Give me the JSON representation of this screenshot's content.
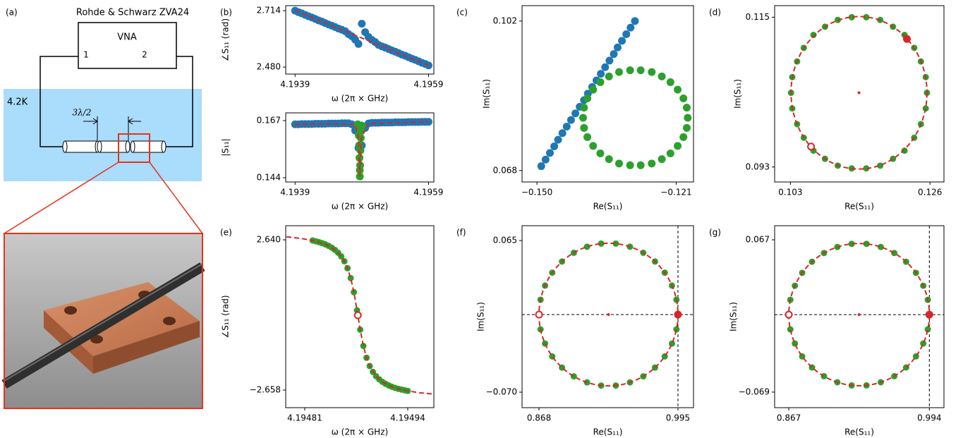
{
  "diagram": {
    "label": "(a)",
    "title": "Rohde & Schwarz ZVA24",
    "instrument": "VNA",
    "ports": [
      "1",
      "2"
    ],
    "temperature": "4.2K",
    "spacing": "3λ/2"
  },
  "chart_data": [
    {
      "type": "scatter",
      "label": "(b)",
      "xlabel": "ω (2π × GHz)",
      "ylabel": "∠S₁₁ (rad)",
      "xlim": [
        4.19376,
        4.19598
      ],
      "ylim": [
        2.451,
        2.735
      ],
      "xticks": [
        4.1939,
        4.1959
      ],
      "yticks": [
        2.714,
        {
          "value": 2.48,
          "label": "2.480"
        }
      ],
      "series": [
        {
          "color": "#1f77b4",
          "style": "points",
          "x": [
            4.1939,
            4.19395,
            4.194,
            4.19405,
            4.1941,
            4.19415,
            4.1942,
            4.19425,
            4.1943,
            4.19435,
            4.1944,
            4.19445,
            4.1945,
            4.19455,
            4.1946,
            4.19465,
            4.1947,
            4.19475,
            4.1948,
            4.19485,
            4.1949,
            4.19495,
            4.195,
            4.19505,
            4.1951,
            4.19515,
            4.1952,
            4.19525,
            4.1953,
            4.19535,
            4.1954,
            4.19545,
            4.1955,
            4.19555,
            4.1956,
            4.19565,
            4.1957,
            4.19575,
            4.1958,
            4.19585,
            4.1959
          ],
          "values": [
            2.714,
            2.708,
            2.703,
            2.697,
            2.691,
            2.686,
            2.68,
            2.674,
            2.669,
            2.663,
            2.657,
            2.652,
            2.646,
            2.64,
            2.635,
            2.629,
            2.617,
            2.608,
            2.594,
            2.576,
            2.66,
            2.625,
            2.605,
            2.593,
            2.584,
            2.572,
            2.566,
            2.561,
            2.555,
            2.549,
            2.544,
            2.538,
            2.532,
            2.527,
            2.521,
            2.515,
            2.51,
            2.504,
            2.498,
            2.493,
            2.487
          ]
        },
        {
          "color": "#d62728",
          "style": "dashed",
          "x": [
            4.1939,
            4.1959
          ],
          "values": [
            2.714,
            2.487
          ]
        }
      ]
    },
    {
      "type": "scatter",
      "xlabel": "ω (2π × GHz)",
      "ylabel": "|S₁₁|",
      "xlim": [
        4.19376,
        4.19598
      ],
      "ylim": [
        0.1423,
        0.1701
      ],
      "xticks": [
        4.1939,
        4.1959
      ],
      "yticks": [
        0.167,
        0.144
      ],
      "series": [
        {
          "color": "#1f77b4",
          "style": "points",
          "x": [
            4.1939,
            4.19395,
            4.194,
            4.19405,
            4.1941,
            4.19415,
            4.1942,
            4.19425,
            4.1943,
            4.19435,
            4.1944,
            4.19445,
            4.1945,
            4.19455,
            4.1946,
            4.19465,
            4.1947,
            4.19475,
            4.1948,
            4.19485,
            4.1949,
            4.19495,
            4.195,
            4.19505,
            4.1951,
            4.19515,
            4.1952,
            4.19525,
            4.1953,
            4.19535,
            4.1954,
            4.19545,
            4.1955,
            4.19555,
            4.1956,
            4.19565,
            4.1957,
            4.19575,
            4.1958,
            4.19585,
            4.1959
          ],
          "values": [
            0.1655,
            0.1655,
            0.1656,
            0.1656,
            0.1656,
            0.1656,
            0.1657,
            0.1657,
            0.1657,
            0.1657,
            0.1658,
            0.1658,
            0.1658,
            0.1658,
            0.1659,
            0.1659,
            0.1659,
            0.1655,
            0.163,
            0.156,
            0.157,
            0.164,
            0.1658,
            0.1661,
            0.1661,
            0.1661,
            0.1662,
            0.1662,
            0.1662,
            0.1662,
            0.1663,
            0.1663,
            0.1663,
            0.1663,
            0.1664,
            0.1664,
            0.1664,
            0.1664,
            0.1665,
            0.1665,
            0.1665
          ]
        },
        {
          "color": "#2ca02c",
          "style": "points",
          "x": [
            4.19484,
            4.19485,
            4.194855,
            4.19486,
            4.194865,
            4.19487,
            4.19487,
            4.194875,
            4.19488,
            4.194885,
            4.19489,
            4.1949
          ],
          "values": [
            0.1655,
            0.164,
            0.161,
            0.157,
            0.152,
            0.147,
            0.1445,
            0.149,
            0.155,
            0.16,
            0.163,
            0.165
          ]
        },
        {
          "color": "#d62728",
          "style": "dashed",
          "x": [
            4.1939,
            4.1945,
            4.1948,
            4.19485,
            4.19487,
            4.19489,
            4.195,
            4.1953,
            4.1959
          ],
          "values": [
            0.1655,
            0.1657,
            0.1654,
            0.16,
            0.1445,
            0.16,
            0.1658,
            0.1661,
            0.1665
          ]
        }
      ]
    },
    {
      "type": "scatter",
      "label": "(c)",
      "xlabel": "Re(S₁₁)",
      "ylabel": "Im(S₁₁)",
      "xlim": [
        -0.1531,
        -0.1174
      ],
      "ylim": [
        0.0654,
        0.1055
      ],
      "xticks": [
        {
          "value": -0.15,
          "label": "−0.150"
        },
        {
          "value": -0.121,
          "label": "−0.121"
        }
      ],
      "yticks": [
        0.102,
        0.068
      ],
      "series": [
        {
          "color": "#1f77b4",
          "style": "points",
          "x": [
            -0.1491,
            -0.1482,
            -0.1473,
            -0.1464,
            -0.1456,
            -0.1447,
            -0.1438,
            -0.1429,
            -0.142,
            -0.1411,
            -0.1402,
            -0.1394,
            -0.1385,
            -0.1376,
            -0.1367,
            -0.1358,
            -0.1349,
            -0.134,
            -0.1332,
            -0.1323,
            -0.1314,
            -0.1305,
            -0.1296
          ],
          "values": [
            0.069,
            0.0705,
            0.072,
            0.0735,
            0.075,
            0.0765,
            0.078,
            0.0795,
            0.081,
            0.0825,
            0.084,
            0.0855,
            0.087,
            0.0885,
            0.09,
            0.0915,
            0.093,
            0.0945,
            0.096,
            0.0975,
            0.099,
            0.1005,
            0.102
          ]
        },
        {
          "color": "#2ca02c",
          "style": "points",
          "x": [
            -0.1186,
            -0.1188,
            -0.1195,
            -0.1207,
            -0.1222,
            -0.124,
            -0.1261,
            -0.1284,
            -0.1306,
            -0.1329,
            -0.135,
            -0.1368,
            -0.1383,
            -0.1395,
            -0.1402,
            -0.1404,
            -0.1402,
            -0.1395,
            -0.1383,
            -0.1368,
            -0.135,
            -0.1329,
            -0.1306,
            -0.1284,
            -0.1261,
            -0.124,
            -0.1222,
            -0.1207,
            -0.1195,
            -0.1188
          ],
          "values": [
            0.08,
            0.0823,
            0.0844,
            0.0864,
            0.0881,
            0.0894,
            0.0904,
            0.0908,
            0.0908,
            0.0904,
            0.0894,
            0.0881,
            0.0864,
            0.0844,
            0.0823,
            0.08,
            0.0777,
            0.0756,
            0.0736,
            0.0719,
            0.0706,
            0.0696,
            0.0692,
            0.0692,
            0.0696,
            0.0706,
            0.0719,
            0.0736,
            0.0756,
            0.0777
          ]
        }
      ]
    },
    {
      "type": "scatter",
      "label": "(d)",
      "xlabel": "Re(S₁₁)",
      "ylabel": "Im(S₁₁)",
      "xlim": [
        0.1004,
        0.1283
      ],
      "ylim": [
        0.0908,
        0.1167
      ],
      "xticks": [
        0.103,
        0.126
      ],
      "yticks": [
        0.115,
        0.093
      ],
      "circle": {
        "center": [
          0.1143,
          0.1039
        ],
        "radius": 0.0112
      },
      "series": [
        {
          "color": "#2ca02c",
          "style": "points",
          "x": [
            0.1255,
            0.1253,
            0.1245,
            0.1234,
            0.1218,
            0.1199,
            0.1178,
            0.1155,
            0.1131,
            0.1108,
            0.1087,
            0.1068,
            0.1052,
            0.1041,
            0.1033,
            0.1031,
            0.1033,
            0.1041,
            0.1052,
            0.1068,
            0.1087,
            0.1108,
            0.1131,
            0.1155,
            0.1178,
            0.1199,
            0.1218,
            0.1234,
            0.1245,
            0.1253
          ],
          "values": [
            0.1039,
            0.1062,
            0.1085,
            0.1105,
            0.1124,
            0.1136,
            0.1146,
            0.115,
            0.115,
            0.1146,
            0.1136,
            0.1124,
            0.1105,
            0.1085,
            0.1062,
            0.1039,
            0.1016,
            0.0993,
            0.0973,
            0.0954,
            0.0942,
            0.0932,
            0.0928,
            0.0928,
            0.0932,
            0.0942,
            0.0954,
            0.0973,
            0.0993,
            0.1016
          ]
        },
        {
          "color": "#d62728",
          "style": "filled",
          "x": [
            0.1222
          ],
          "values": [
            0.1118
          ]
        },
        {
          "color": "#d62728",
          "style": "open",
          "x": [
            0.1064
          ],
          "values": [
            0.096
          ]
        }
      ]
    },
    {
      "type": "scatter",
      "label": "(e)",
      "xlabel": "ω (2π × GHz)",
      "ylabel": "∠S₁₁ (rad)",
      "xlim": [
        4.194786,
        4.194973
      ],
      "ylim": [
        -3.28,
        3.138
      ],
      "xticks": [
        4.19481,
        4.19494
      ],
      "yticks": [
        {
          "value": 2.64,
          "label": "2.640"
        },
        {
          "value": -2.658,
          "label": "−2.658"
        }
      ],
      "series": [
        {
          "color": "#2ca02c",
          "style": "points",
          "x": [
            4.19482,
            4.194824,
            4.194828,
            4.194832,
            4.194836,
            4.19484,
            4.194844,
            4.194848,
            4.194852,
            4.194856,
            4.19486,
            4.194864,
            4.194868,
            4.194872,
            4.194876,
            4.19488,
            4.194884,
            4.194888,
            4.194892,
            4.194896,
            4.1949,
            4.194904,
            4.194908,
            4.194912,
            4.194916,
            4.19492,
            4.194924,
            4.194928,
            4.194932,
            4.194936,
            4.19494
          ],
          "values": [
            2.616,
            2.589,
            2.558,
            2.522,
            2.48,
            2.428,
            2.365,
            2.287,
            2.188,
            2.058,
            1.884,
            1.638,
            1.29,
            0.796,
            0.153,
            -0.528,
            -1.103,
            -1.519,
            -1.811,
            -2.018,
            -2.169,
            -2.281,
            -2.369,
            -2.438,
            -2.495,
            -2.543,
            -2.581,
            -2.614,
            -2.642,
            -2.667,
            -2.69
          ]
        },
        {
          "color": "#d62728",
          "style": "dashed",
          "x": [
            4.194787,
            4.194805,
            4.19482,
            4.194828,
            4.194836,
            4.194844,
            4.194852,
            4.19486,
            4.194864,
            4.194868,
            4.194872,
            4.194876,
            4.19488,
            4.194884,
            4.194888,
            4.194892,
            4.1949,
            4.194908,
            4.194916,
            4.194924,
            4.194932,
            4.19494,
            4.194955,
            4.194972
          ],
          "values": [
            2.747,
            2.69,
            2.616,
            2.558,
            2.48,
            2.365,
            2.188,
            1.884,
            1.638,
            1.29,
            0.796,
            0.153,
            -0.528,
            -1.103,
            -1.519,
            -1.811,
            -2.169,
            -2.369,
            -2.495,
            -2.581,
            -2.642,
            -2.69,
            -2.753,
            -2.801
          ]
        },
        {
          "color": "#d62728",
          "style": "open",
          "x": [
            4.194877
          ],
          "values": [
            -0.021
          ]
        }
      ]
    },
    {
      "type": "scatter",
      "label": "(f)",
      "xlabel": "Re(S₁₁)",
      "ylabel": "Im(S₁₁)",
      "xlim": [
        0.8525,
        1.0092
      ],
      "ylim": [
        -0.0838,
        0.0782
      ],
      "xticks": [
        0.868,
        0.995
      ],
      "yticks": [
        0.065,
        {
          "value": -0.07,
          "label": "−0.070"
        }
      ],
      "crosshair": {
        "x": 0.995,
        "y": -0.0009
      },
      "circle": {
        "center": [
          0.9315,
          -0.0009
        ],
        "radius": 0.0635
      },
      "series": [
        {
          "color": "#2ca02c",
          "style": "points",
          "x": [
            0.995,
            0.9936,
            0.9895,
            0.9829,
            0.974,
            0.9633,
            0.9511,
            0.9382,
            0.9248,
            0.9119,
            0.8998,
            0.889,
            0.8801,
            0.8735,
            0.8694,
            0.868,
            0.8694,
            0.8735,
            0.8801,
            0.889,
            0.8998,
            0.9119,
            0.9248,
            0.9382,
            0.9511,
            0.9633,
            0.974,
            0.9829,
            0.9895,
            0.9936
          ],
          "values": [
            -0.0009,
            0.0123,
            0.0249,
            0.0364,
            0.0463,
            0.0541,
            0.0595,
            0.0623,
            0.0623,
            0.0595,
            0.0541,
            0.0463,
            0.0364,
            0.0249,
            0.0123,
            -0.0009,
            -0.0141,
            -0.0267,
            -0.0382,
            -0.0481,
            -0.0559,
            -0.0613,
            -0.0641,
            -0.0641,
            -0.0613,
            -0.0559,
            -0.0481,
            -0.0382,
            -0.0267,
            -0.0141
          ]
        },
        {
          "color": "#d62728",
          "style": "filled",
          "x": [
            0.995
          ],
          "values": [
            -0.0009
          ]
        },
        {
          "color": "#d62728",
          "style": "open",
          "x": [
            0.868
          ],
          "values": [
            -0.0009
          ]
        }
      ]
    },
    {
      "type": "scatter",
      "label": "(g)",
      "xlabel": "Re(S₁₁)",
      "ylabel": "Im(S₁₁)",
      "xlim": [
        0.8542,
        1.0072
      ],
      "ylim": [
        -0.0829,
        0.0796
      ],
      "xticks": [
        0.867,
        0.994
      ],
      "yticks": [
        0.067,
        {
          "value": -0.069,
          "label": "−0.069"
        }
      ],
      "crosshair": {
        "x": 0.994,
        "y": 0.0002
      },
      "circle": {
        "center": [
          0.9305,
          0.0002
        ],
        "radius": 0.0635
      },
      "series": [
        {
          "color": "#2ca02c",
          "style": "points",
          "x": [
            0.994,
            0.9926,
            0.9885,
            0.9819,
            0.973,
            0.9623,
            0.9501,
            0.9372,
            0.9238,
            0.9109,
            0.8988,
            0.888,
            0.8791,
            0.8725,
            0.8684,
            0.867,
            0.8684,
            0.8725,
            0.8791,
            0.888,
            0.8988,
            0.9109,
            0.9238,
            0.9372,
            0.9501,
            0.9623,
            0.973,
            0.9819,
            0.9885,
            0.9926
          ],
          "values": [
            0.0002,
            0.0134,
            0.026,
            0.0375,
            0.0474,
            0.0552,
            0.0606,
            0.0634,
            0.0634,
            0.0606,
            0.0552,
            0.0474,
            0.0375,
            0.026,
            0.0134,
            0.0002,
            -0.013,
            -0.0256,
            -0.0371,
            -0.047,
            -0.0548,
            -0.0602,
            -0.063,
            -0.063,
            -0.0602,
            -0.0548,
            -0.047,
            -0.0371,
            -0.0256,
            -0.013
          ]
        },
        {
          "color": "#d62728",
          "style": "filled",
          "x": [
            0.994
          ],
          "values": [
            0.0002
          ]
        },
        {
          "color": "#d62728",
          "style": "open",
          "x": [
            0.867
          ],
          "values": [
            0.0002
          ]
        }
      ]
    }
  ]
}
